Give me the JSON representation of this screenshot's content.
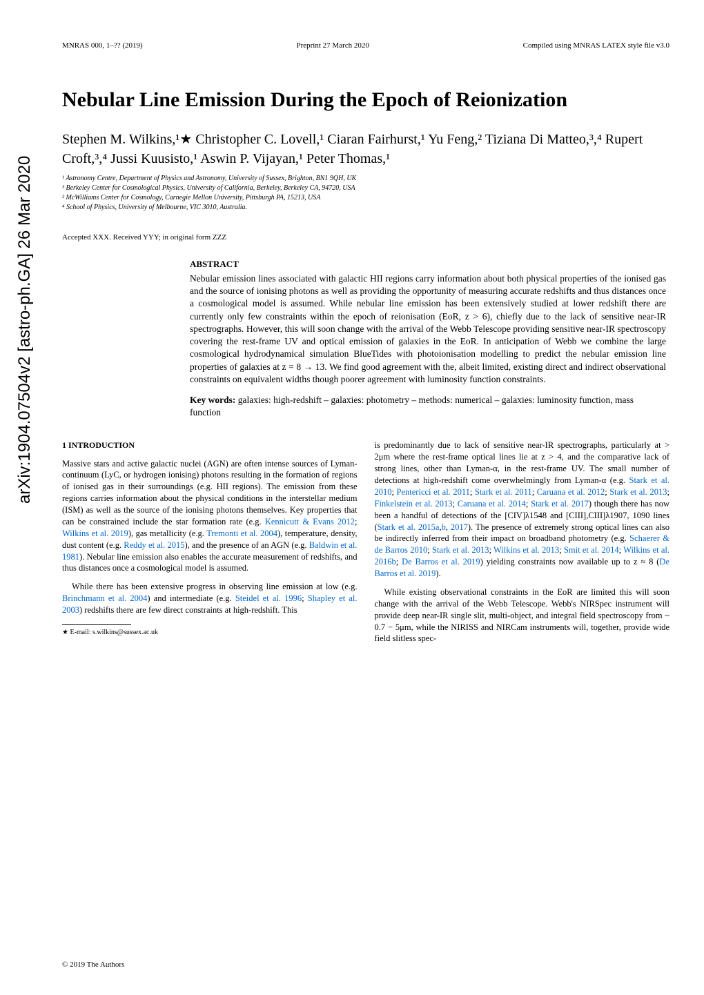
{
  "arxiv": "arXiv:1904.07504v2  [astro-ph.GA]  26 Mar 2020",
  "header": {
    "left": "MNRAS 000, 1–?? (2019)",
    "center": "Preprint 27 March 2020",
    "right": "Compiled using MNRAS LATEX style file v3.0"
  },
  "title": "Nebular Line Emission During the Epoch of Reionization",
  "authors": "Stephen M. Wilkins,¹★ Christopher C. Lovell,¹ Ciaran Fairhurst,¹ Yu Feng,² Tiziana Di Matteo,³,⁴ Rupert Croft,³,⁴ Jussi Kuusisto,¹ Aswin P. Vijayan,¹ Peter Thomas,¹",
  "affiliations": [
    "¹ Astronomy Centre, Department of Physics and Astronomy, University of Sussex, Brighton, BN1 9QH, UK",
    "³ Berkeley Center for Cosmological Physics, University of California, Berkeley, Berkeley CA, 94720, USA",
    "² McWilliams Center for Cosmology, Carnegie Mellon University, Pittsburgh PA, 15213, USA",
    "⁴ School of Physics, University of Melbourne, VIC 3010, Australia."
  ],
  "accepted": "Accepted XXX. Received YYY; in original form ZZZ",
  "abstract": {
    "heading": "ABSTRACT",
    "text": "Nebular emission lines associated with galactic HII regions carry information about both physical properties of the ionised gas and the source of ionising photons as well as providing the opportunity of measuring accurate redshifts and thus distances once a cosmological model is assumed. While nebular line emission has been extensively studied at lower redshift there are currently only few constraints within the epoch of reionisation (EoR, z > 6), chiefly due to the lack of sensitive near-IR spectrographs. However, this will soon change with the arrival of the Webb Telescope providing sensitive near-IR spectroscopy covering the rest-frame UV and optical emission of galaxies in the EoR. In anticipation of Webb we combine the large cosmological hydrodynamical simulation BlueTides with photoionisation modelling to predict the nebular emission line properties of galaxies at z = 8 → 13. We find good agreement with the, albeit limited, existing direct and indirect observational constraints on equivalent widths though poorer agreement with luminosity function constraints.",
    "keywords_label": "Key words:",
    "keywords": "galaxies: high-redshift – galaxies: photometry – methods: numerical – galaxies: luminosity function, mass function"
  },
  "section1": {
    "heading": "1   INTRODUCTION",
    "p1a": "Massive stars and active galactic nuclei (AGN) are often intense sources of Lyman-continuum (LyC, or hydrogen ionising) photons resulting in the formation of regions of ionised gas in their surroundings (e.g. HII regions). The emission from these regions carries information about the physical conditions in the interstellar medium (ISM) as well as the source of the ionising photons themselves. Key properties that can be constrained include the star formation rate (e.g. ",
    "c1": "Kennicutt & Evans 2012",
    "s1": "; ",
    "c2": "Wilkins et al. 2019",
    "p1b": "), gas metallicity (e.g. ",
    "c3": "Tremonti et al. 2004",
    "p1c": "), temperature, density, dust content (e.g. ",
    "c4": "Reddy et al. 2015",
    "p1d": "), and the presence of an AGN (e.g. ",
    "c5": "Baldwin et al. 1981",
    "p1e": "). Nebular line emission also enables the accurate measurement of redshifts, and thus distances once a cosmological model is assumed.",
    "p2a": "While there has been extensive progress in observing line emission at low (e.g. ",
    "c6": "Brinchmann et al. 2004",
    "p2b": ") and intermediate (e.g. ",
    "c7": "Steidel et al. 1996",
    "s2": "; ",
    "c8": "Shapley et al. 2003",
    "p2c": ") redshifts there are few direct constraints at high-redshift. This",
    "p3a": "is predominantly due to lack of sensitive near-IR spectrographs, particularly at > 2μm where the rest-frame optical lines lie at z > 4, and the comparative lack of strong lines, other than Lyman-α, in the rest-frame UV. The small number of detections at high-redshift come overwhelmingly from Lyman-α (e.g. ",
    "c9": "Stark et al. 2010",
    "s3": "; ",
    "c10": "Pentericci et al. 2011",
    "s4": "; ",
    "c11": "Stark et al. 2011",
    "s5": "; ",
    "c12": "Caruana et al. 2012",
    "s6": "; ",
    "c13": "Stark et al. 2013",
    "s7": "; ",
    "c14": "Finkelstein et al. 2013",
    "s8": "; ",
    "c15": "Caruana et al. 2014",
    "s9": "; ",
    "c16": "Stark et al. 2017",
    "p3b": ") though there has now been a handful of detections of the [CIV]λ1548 and [CIII],CIII]λ1907, 1090 lines (",
    "c17": "Stark et al. 2015a",
    "s10": ",",
    "c18": "b",
    "s11": ", ",
    "c19": "2017",
    "p3c": "). The presence of extremely strong optical lines can also be indirectly inferred from their impact on broadband photometry (e.g. ",
    "c20": "Schaerer & de Barros 2010",
    "s12": "; ",
    "c21": "Stark et al. 2013",
    "s13": "; ",
    "c22": "Wilkins et al. 2013",
    "s14": "; ",
    "c23": "Smit et al. 2014",
    "s15": "; ",
    "c24": "Wilkins et al. 2016b",
    "s16": "; ",
    "c25": "De Barros et al. 2019",
    "p3d": ") yielding constraints now available up to z ≈ 8 (",
    "c26": "De Barros et al. 2019",
    "p3e": ").",
    "p4": "While existing observational constraints in the EoR are limited this will soon change with the arrival of the Webb Telescope. Webb's NIRSpec instrument will provide deep near-IR single slit, multi-object, and integral field spectroscopy from ~ 0.7 − 5μm, while the NIRISS and NIRCam instruments will, together, provide wide field slitless spec-"
  },
  "footnote": {
    "marker": "★",
    "text": "E-mail: s.wilkins@sussex.ac.uk"
  },
  "copyright": "© 2019 The Authors"
}
